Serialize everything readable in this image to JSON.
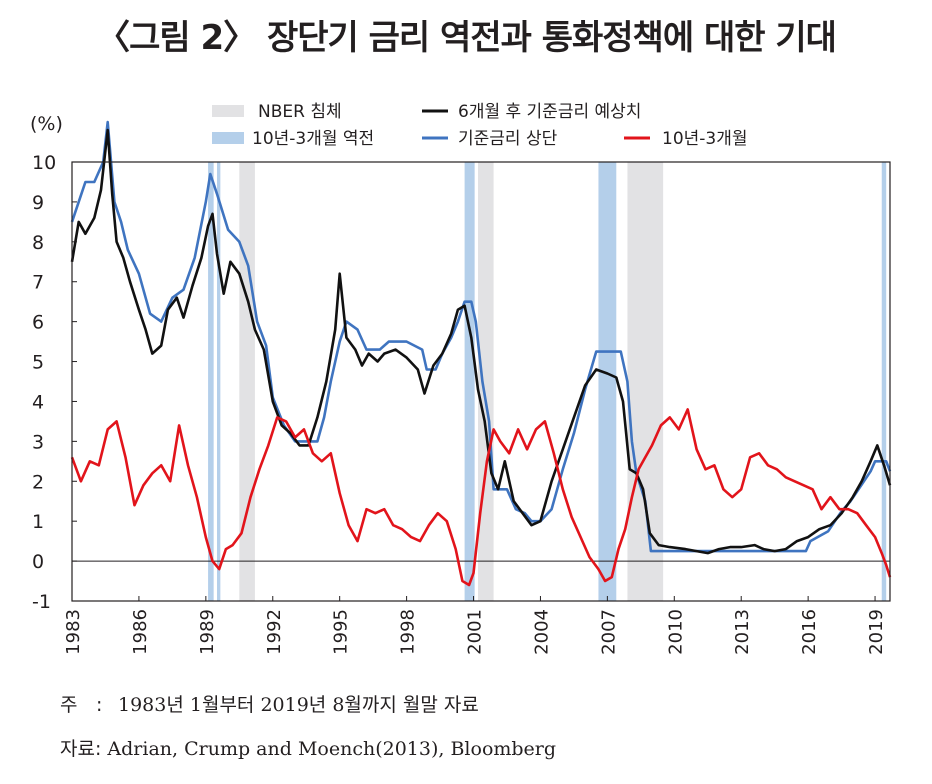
{
  "title": "〈그림 2〉 장단기 금리 역전과 통화정책에 대한 기대",
  "note": {
    "label": "주",
    "colon": ":",
    "text": "1983년 1월부터 2019년 8월까지 월말 자료"
  },
  "source": {
    "label": "자료:",
    "text": "Adrian, Crump and Moench(2013), Bloomberg"
  },
  "colors": {
    "expected": "#111111",
    "fedfunds": "#3f74c0",
    "spread": "#e2141b",
    "recession": "#e2e2e4",
    "inversion": "#b4cfea"
  },
  "chart_data": {
    "type": "line",
    "unit_label": "(%)",
    "ylim": [
      -1,
      10
    ],
    "y_ticks": [
      "10",
      "9",
      "8",
      "7",
      "6",
      "5",
      "4",
      "3",
      "2",
      "1",
      "0",
      "-1"
    ],
    "xlim": [
      1983.0,
      2019.67
    ],
    "x_tick_labels": [
      "1983",
      "1986",
      "1989",
      "1992",
      "1995",
      "1998",
      "2001",
      "2004",
      "2007",
      "2010",
      "2013",
      "2016",
      "2019"
    ],
    "x_tick_values": [
      1983,
      1986,
      1989,
      1992,
      1995,
      1998,
      2001,
      2004,
      2007,
      2010,
      2013,
      2016,
      2019
    ],
    "zero_line": 0,
    "legend": {
      "recession": "NBER 침체",
      "inversion": "10년-3개월 역전",
      "expected": "6개월 후 기준금리 예상치",
      "fedfunds": "기준금리 상단",
      "spread": "10년-3개월"
    },
    "recessions": [
      [
        1990.5,
        1991.2
      ],
      [
        2001.2,
        2001.9
      ],
      [
        2007.9,
        2009.5
      ]
    ],
    "inversions": [
      [
        1989.1,
        1989.35
      ],
      [
        1989.5,
        1989.65
      ],
      [
        2000.6,
        2001.05
      ],
      [
        2006.6,
        2007.4
      ],
      [
        2019.3,
        2019.5
      ]
    ],
    "series": [
      {
        "key": "fedfunds",
        "name": "기준금리 상단",
        "x": [
          1983.0,
          1983.3,
          1983.6,
          1984.0,
          1984.4,
          1984.6,
          1984.9,
          1985.2,
          1985.5,
          1986.0,
          1986.5,
          1987.0,
          1987.5,
          1988.0,
          1988.5,
          1989.0,
          1989.2,
          1989.5,
          1990.0,
          1990.5,
          1990.9,
          1991.3,
          1991.7,
          1992.0,
          1992.5,
          1993.0,
          1993.5,
          1994.0,
          1994.3,
          1994.6,
          1995.0,
          1995.3,
          1995.8,
          1996.2,
          1996.8,
          1997.2,
          1998.0,
          1998.7,
          1998.9,
          1999.3,
          1999.6,
          2000.0,
          2000.3,
          2000.6,
          2000.9,
          2001.1,
          2001.4,
          2001.7,
          2001.9,
          2002.5,
          2002.9,
          2003.3,
          2003.6,
          2004.0,
          2004.5,
          2005.0,
          2005.5,
          2006.0,
          2006.5,
          2007.0,
          2007.6,
          2007.9,
          2008.1,
          2008.3,
          2008.7,
          2008.95,
          2010.0,
          2012.0,
          2014.0,
          2015.9,
          2016.1,
          2016.9,
          2017.2,
          2017.5,
          2017.9,
          2018.2,
          2018.5,
          2018.8,
          2019.0,
          2019.5,
          2019.67
        ],
        "y": [
          8.5,
          9.0,
          9.5,
          9.5,
          10.0,
          11.0,
          9.0,
          8.5,
          7.8,
          7.2,
          6.2,
          6.0,
          6.6,
          6.8,
          7.6,
          9.0,
          9.7,
          9.2,
          8.3,
          8.0,
          7.4,
          6.0,
          5.4,
          4.1,
          3.4,
          3.0,
          3.0,
          3.0,
          3.6,
          4.5,
          5.5,
          6.0,
          5.8,
          5.3,
          5.3,
          5.5,
          5.5,
          5.3,
          4.8,
          4.8,
          5.2,
          5.6,
          6.0,
          6.5,
          6.5,
          6.0,
          4.5,
          3.5,
          1.8,
          1.8,
          1.3,
          1.2,
          1.0,
          1.0,
          1.3,
          2.3,
          3.2,
          4.3,
          5.25,
          5.25,
          5.25,
          4.5,
          3.0,
          2.2,
          1.5,
          0.25,
          0.25,
          0.25,
          0.25,
          0.25,
          0.5,
          0.75,
          1.0,
          1.25,
          1.5,
          1.75,
          2.0,
          2.25,
          2.5,
          2.5,
          2.25
        ]
      },
      {
        "key": "expected",
        "name": "6개월 후 기준금리 예상치",
        "x": [
          1983.0,
          1983.3,
          1983.6,
          1984.0,
          1984.3,
          1984.6,
          1984.8,
          1985.0,
          1985.3,
          1985.6,
          1986.0,
          1986.3,
          1986.6,
          1987.0,
          1987.3,
          1987.7,
          1988.0,
          1988.4,
          1988.8,
          1989.1,
          1989.3,
          1989.5,
          1989.8,
          1990.1,
          1990.5,
          1990.9,
          1991.2,
          1991.6,
          1992.0,
          1992.4,
          1992.8,
          1993.2,
          1993.6,
          1994.0,
          1994.4,
          1994.8,
          1995.0,
          1995.3,
          1995.7,
          1996.0,
          1996.3,
          1996.7,
          1997.0,
          1997.5,
          1998.0,
          1998.5,
          1998.8,
          1999.2,
          1999.6,
          2000.0,
          2000.3,
          2000.6,
          2000.9,
          2001.2,
          2001.5,
          2001.8,
          2002.1,
          2002.4,
          2002.8,
          2003.2,
          2003.6,
          2004.0,
          2004.5,
          2005.0,
          2005.5,
          2006.0,
          2006.5,
          2007.0,
          2007.4,
          2007.7,
          2008.0,
          2008.3,
          2008.6,
          2008.9,
          2009.3,
          2009.8,
          2010.5,
          2011.0,
          2011.5,
          2012.0,
          2012.5,
          2013.0,
          2013.6,
          2014.0,
          2014.5,
          2015.0,
          2015.5,
          2016.0,
          2016.5,
          2017.0,
          2017.5,
          2018.0,
          2018.4,
          2018.8,
          2019.1,
          2019.4,
          2019.67
        ],
        "y": [
          7.5,
          8.5,
          8.2,
          8.6,
          9.3,
          10.8,
          9.2,
          8.0,
          7.6,
          7.0,
          6.3,
          5.8,
          5.2,
          5.4,
          6.3,
          6.6,
          6.1,
          6.9,
          7.6,
          8.4,
          8.7,
          7.7,
          6.7,
          7.5,
          7.2,
          6.5,
          5.8,
          5.3,
          4.0,
          3.4,
          3.2,
          2.9,
          2.9,
          3.6,
          4.5,
          5.8,
          7.2,
          5.6,
          5.3,
          4.9,
          5.2,
          5.0,
          5.2,
          5.3,
          5.1,
          4.8,
          4.2,
          4.9,
          5.2,
          5.7,
          6.3,
          6.4,
          5.6,
          4.3,
          3.5,
          2.2,
          1.8,
          2.5,
          1.5,
          1.2,
          0.9,
          1.0,
          2.0,
          2.8,
          3.6,
          4.4,
          4.8,
          4.7,
          4.6,
          4.0,
          2.3,
          2.2,
          1.8,
          0.7,
          0.4,
          0.35,
          0.3,
          0.25,
          0.2,
          0.3,
          0.35,
          0.35,
          0.4,
          0.3,
          0.25,
          0.3,
          0.5,
          0.6,
          0.8,
          0.9,
          1.2,
          1.6,
          2.0,
          2.5,
          2.9,
          2.4,
          1.9
        ]
      },
      {
        "key": "spread",
        "name": "10년-3개월",
        "x": [
          1983.0,
          1983.4,
          1983.8,
          1984.2,
          1984.6,
          1985.0,
          1985.4,
          1985.8,
          1986.2,
          1986.6,
          1987.0,
          1987.4,
          1987.8,
          1988.2,
          1988.6,
          1989.0,
          1989.3,
          1989.6,
          1989.9,
          1990.2,
          1990.6,
          1991.0,
          1991.4,
          1991.8,
          1992.2,
          1992.6,
          1993.0,
          1993.4,
          1993.8,
          1994.2,
          1994.6,
          1995.0,
          1995.4,
          1995.8,
          1996.2,
          1996.6,
          1997.0,
          1997.4,
          1997.8,
          1998.2,
          1998.6,
          1999.0,
          1999.4,
          1999.8,
          2000.2,
          2000.5,
          2000.8,
          2001.0,
          2001.3,
          2001.6,
          2001.9,
          2002.2,
          2002.6,
          2003.0,
          2003.4,
          2003.8,
          2004.2,
          2004.6,
          2005.0,
          2005.4,
          2005.8,
          2006.2,
          2006.6,
          2006.9,
          2007.2,
          2007.5,
          2007.8,
          2008.1,
          2008.4,
          2008.7,
          2009.0,
          2009.4,
          2009.8,
          2010.2,
          2010.6,
          2011.0,
          2011.4,
          2011.8,
          2012.2,
          2012.6,
          2013.0,
          2013.4,
          2013.8,
          2014.2,
          2014.6,
          2015.0,
          2015.4,
          2015.8,
          2016.2,
          2016.6,
          2017.0,
          2017.4,
          2017.8,
          2018.2,
          2018.6,
          2019.0,
          2019.3,
          2019.5,
          2019.67
        ],
        "y": [
          2.6,
          2.0,
          2.5,
          2.4,
          3.3,
          3.5,
          2.6,
          1.4,
          1.9,
          2.2,
          2.4,
          2.0,
          3.4,
          2.4,
          1.6,
          0.6,
          0.0,
          -0.2,
          0.3,
          0.4,
          0.7,
          1.6,
          2.3,
          2.9,
          3.6,
          3.5,
          3.1,
          3.3,
          2.7,
          2.5,
          2.7,
          1.7,
          0.9,
          0.5,
          1.3,
          1.2,
          1.3,
          0.9,
          0.8,
          0.6,
          0.5,
          0.9,
          1.2,
          1.0,
          0.3,
          -0.5,
          -0.6,
          -0.3,
          1.2,
          2.5,
          3.3,
          3.0,
          2.7,
          3.3,
          2.8,
          3.3,
          3.5,
          2.7,
          1.8,
          1.1,
          0.6,
          0.1,
          -0.2,
          -0.5,
          -0.4,
          0.3,
          0.8,
          1.6,
          2.3,
          2.6,
          2.9,
          3.4,
          3.6,
          3.3,
          3.8,
          2.8,
          2.3,
          2.4,
          1.8,
          1.6,
          1.8,
          2.6,
          2.7,
          2.4,
          2.3,
          2.1,
          2.0,
          1.9,
          1.8,
          1.3,
          1.6,
          1.3,
          1.3,
          1.2,
          0.9,
          0.6,
          0.2,
          -0.1,
          -0.4
        ]
      }
    ]
  }
}
